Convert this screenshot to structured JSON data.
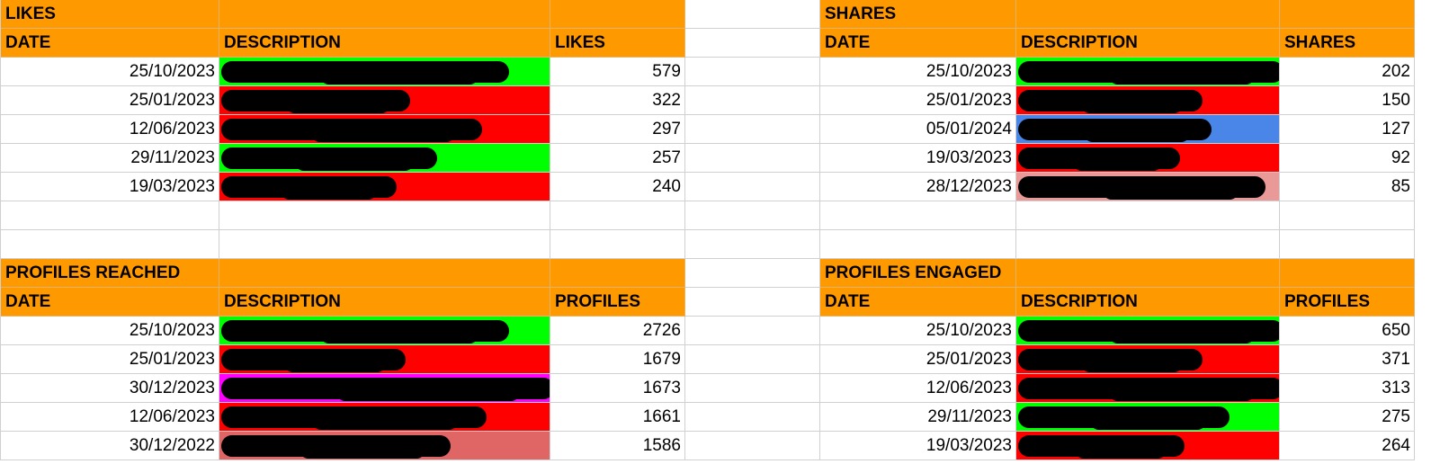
{
  "colors": {
    "header_bg": "#ff9900",
    "green": "#00ff00",
    "red": "#ff0000",
    "blue": "#4a86e8",
    "magenta": "#ff00ff",
    "light_red": "#ea9999",
    "dark_light_red": "#e06666"
  },
  "likes": {
    "title": "LIKES",
    "col_date": "DATE",
    "col_desc": "DESCRIPTION",
    "col_value": "LIKES",
    "rows": [
      {
        "date": "25/10/2023",
        "value": "579",
        "color": "#00ff00"
      },
      {
        "date": "25/01/2023",
        "value": "322",
        "color": "#ff0000"
      },
      {
        "date": "12/06/2023",
        "value": "297",
        "color": "#ff0000"
      },
      {
        "date": "29/11/2023",
        "value": "257",
        "color": "#00ff00"
      },
      {
        "date": "19/03/2023",
        "value": "240",
        "color": "#ff0000"
      }
    ]
  },
  "shares": {
    "title": "SHARES",
    "col_date": "DATE",
    "col_desc": "DESCRIPTION",
    "col_value": "SHARES",
    "rows": [
      {
        "date": "25/10/2023",
        "value": "202",
        "color": "#00ff00"
      },
      {
        "date": "25/01/2023",
        "value": "150",
        "color": "#ff0000"
      },
      {
        "date": "05/01/2024",
        "value": "127",
        "color": "#4a86e8"
      },
      {
        "date": "19/03/2023",
        "value": "92",
        "color": "#ff0000"
      },
      {
        "date": "28/12/2023",
        "value": "85",
        "color": "#ea9999"
      }
    ]
  },
  "reached": {
    "title": "PROFILES REACHED",
    "col_date": "DATE",
    "col_desc": "DESCRIPTION",
    "col_value": "PROFILES",
    "rows": [
      {
        "date": "25/10/2023",
        "value": "2726",
        "color": "#00ff00"
      },
      {
        "date": "25/01/2023",
        "value": "1679",
        "color": "#ff0000"
      },
      {
        "date": "30/12/2023",
        "value": "1673",
        "color": "#ff00ff"
      },
      {
        "date": "12/06/2023",
        "value": "1661",
        "color": "#ff0000"
      },
      {
        "date": "30/12/2022",
        "value": "1586",
        "color": "#e06666"
      }
    ]
  },
  "engaged": {
    "title": "PROFILES ENGAGED",
    "col_date": "DATE",
    "col_desc": "DESCRIPTION",
    "col_value": "PROFILES",
    "rows": [
      {
        "date": "25/10/2023",
        "value": "650",
        "color": "#00ff00"
      },
      {
        "date": "25/01/2023",
        "value": "371",
        "color": "#ff0000"
      },
      {
        "date": "12/06/2023",
        "value": "313",
        "color": "#ff0000"
      },
      {
        "date": "29/11/2023",
        "value": "275",
        "color": "#00ff00"
      },
      {
        "date": "19/03/2023",
        "value": "264",
        "color": "#ff0000"
      }
    ]
  }
}
